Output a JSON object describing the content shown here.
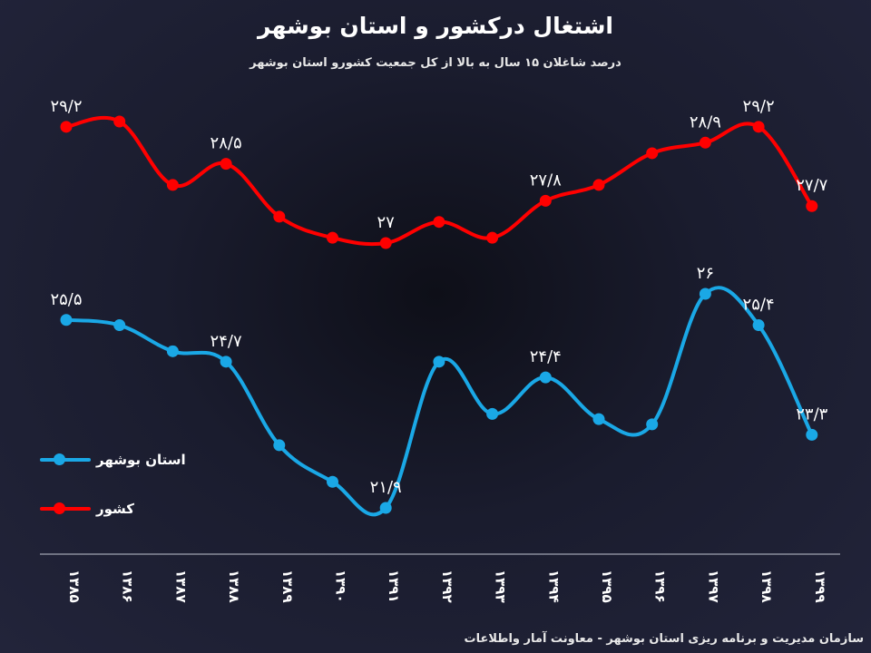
{
  "title": "اشتغال درکشور و استان بوشهر",
  "subtitle": "درصد شاغلان ۱۵ سال به بالا از کل جمعیت کشورو استان بوشهر",
  "source": "سازمان مدیریت و برنامه ریزی استان بوشهر - معاونت آمار واطلاعات",
  "colors": {
    "country": "#ff0000",
    "province": "#1aa8e6",
    "axis": "#bfc3cf",
    "text": "#ffffff"
  },
  "legend": [
    {
      "label": "استان بوشهر",
      "color": "#1aa8e6"
    },
    {
      "label": "کشور",
      "color": "#ff0000"
    }
  ],
  "chart_data": {
    "type": "line",
    "categories": [
      "۱۳۸۵",
      "۱۳۸۶",
      "۱۳۸۷",
      "۱۳۸۸",
      "۱۳۸۹",
      "۱۳۹۰",
      "۱۳۹۱",
      "۱۳۹۲",
      "۱۳۹۳",
      "۱۳۹۴",
      "۱۳۹۵",
      "۱۳۹۶",
      "۱۳۹۷",
      "۱۳۹۸",
      "۱۳۹۹"
    ],
    "series": [
      {
        "name": "کشور",
        "values": [
          29.2,
          29.3,
          28.1,
          28.5,
          27.5,
          27.1,
          27.0,
          27.4,
          27.1,
          27.8,
          28.1,
          28.7,
          28.9,
          29.2,
          27.7
        ],
        "labels": [
          "۲۹/۲",
          "",
          "",
          "۲۸/۵",
          "",
          "",
          "۲۷",
          "",
          "",
          "۲۷/۸",
          "",
          "",
          "۲۸/۹",
          "۲۹/۲",
          "۲۷/۷"
        ]
      },
      {
        "name": "استان بوشهر",
        "values": [
          25.5,
          25.4,
          24.9,
          24.7,
          23.1,
          22.4,
          21.9,
          24.7,
          23.7,
          24.4,
          23.6,
          23.5,
          26.0,
          25.4,
          23.3
        ],
        "labels": [
          "۲۵/۵",
          "",
          "",
          "۲۴/۷",
          "",
          "",
          "۲۱/۹",
          "",
          "",
          "۲۴/۴",
          "",
          "",
          "۲۶",
          "۲۵/۴",
          "۲۳/۳"
        ]
      }
    ],
    "grid": false,
    "legend_position": "left"
  }
}
